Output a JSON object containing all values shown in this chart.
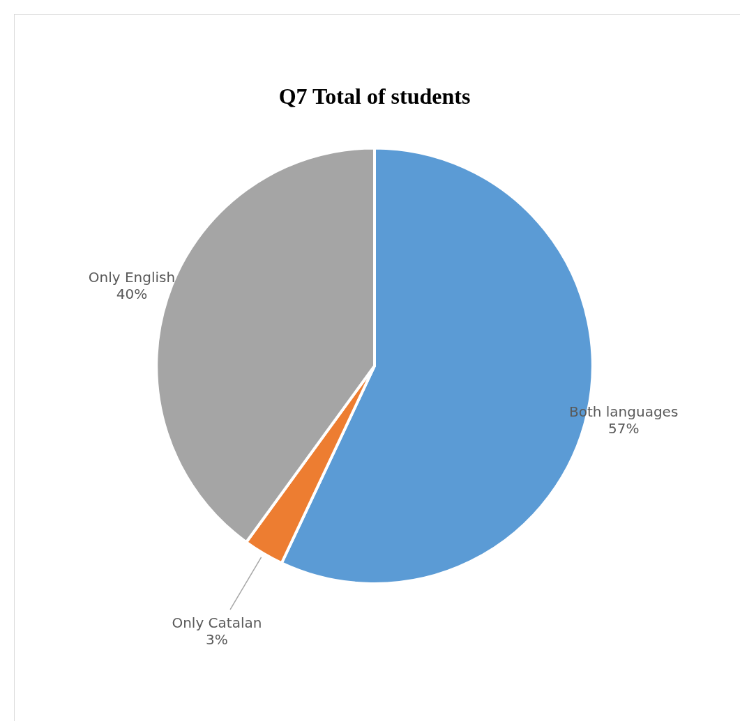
{
  "chart_data": {
    "type": "pie",
    "title": "Q7 Total of students",
    "categories": [
      "Both languages",
      "Only Catalan",
      "Only English"
    ],
    "values": [
      57,
      3,
      40
    ],
    "colors": [
      "#5b9bd5",
      "#ed7d31",
      "#a5a5a5"
    ],
    "value_labels": [
      "57%",
      "3%",
      "40%"
    ],
    "legend": false
  }
}
